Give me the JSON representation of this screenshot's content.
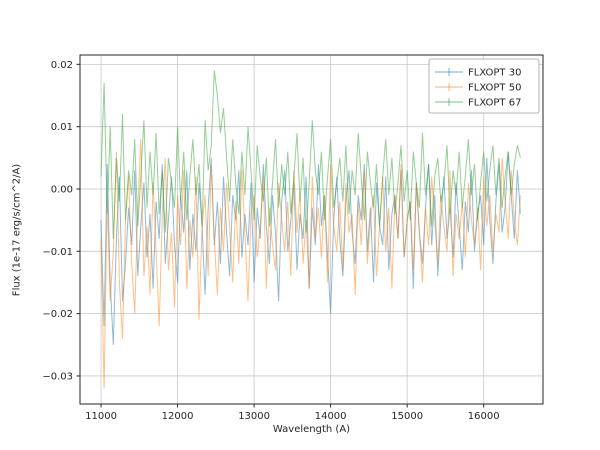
{
  "figure": {
    "background": "#ffffff"
  },
  "chart_data": {
    "type": "line",
    "title": "",
    "xlabel": "Wavelength (A)",
    "ylabel": "Flux (1e-17 erg/s/cm^2/A)",
    "xlim": [
      10725,
      16775
    ],
    "ylim": [
      -0.0345,
      0.0215
    ],
    "x_ticks": [
      11000,
      12000,
      13000,
      14000,
      15000,
      16000
    ],
    "y_ticks": [
      -0.03,
      -0.02,
      -0.01,
      0.0,
      0.01,
      0.02
    ],
    "grid": true,
    "legend_position": "upper right",
    "grid_color": "#c8c8c8",
    "spine_color": "#262626",
    "x_start": 11000,
    "x_step": 40,
    "series": [
      {
        "name": "FLXOPT 30",
        "color": "#1f77b4",
        "opacity": 0.5,
        "values": [
          -0.005,
          -0.022,
          0.004,
          -0.015,
          -0.025,
          -0.008,
          0.002,
          -0.018,
          -0.012,
          -0.003,
          -0.009,
          0.003,
          -0.014,
          -0.006,
          0.001,
          -0.011,
          -0.004,
          -0.016,
          -0.002,
          -0.008,
          0.004,
          -0.012,
          -0.005,
          0.002,
          -0.009,
          -0.015,
          -0.001,
          -0.007,
          0.003,
          -0.013,
          -0.004,
          -0.01,
          0.001,
          -0.006,
          -0.017,
          -0.003,
          0.005,
          -0.009,
          -0.002,
          -0.012,
          0.002,
          -0.007,
          -0.014,
          -0.001,
          -0.005,
          0.003,
          -0.011,
          -0.004,
          -0.009,
          0.001,
          -0.015,
          -0.003,
          -0.008,
          0.004,
          -0.006,
          -0.012,
          -0.001,
          -0.007,
          -0.018,
          -0.002,
          0.003,
          -0.01,
          -0.005,
          0.001,
          -0.013,
          -0.004,
          -0.008,
          0.002,
          -0.016,
          -0.003,
          -0.009,
          0.004,
          -0.006,
          -0.001,
          -0.011,
          -0.02,
          -0.005,
          0.002,
          -0.008,
          -0.014,
          -0.002,
          0.003,
          -0.007,
          -0.012,
          -0.001,
          -0.005,
          0.004,
          -0.01,
          -0.003,
          -0.015,
          0.001,
          -0.006,
          -0.009,
          0.002,
          -0.013,
          -0.004,
          -0.001,
          -0.008,
          0.003,
          -0.011,
          -0.005,
          -0.002,
          -0.016,
          0.001,
          -0.007,
          -0.012,
          -0.003,
          0.004,
          -0.009,
          -0.001,
          -0.014,
          -0.005,
          0.002,
          -0.008,
          -0.003,
          -0.011,
          0.001,
          -0.006,
          -0.013,
          -0.002,
          -0.007,
          0.003,
          -0.01,
          -0.004,
          -0.001,
          -0.009,
          0.005,
          -0.005,
          -0.012,
          -0.002,
          0.004,
          -0.007,
          -0.003,
          0.006,
          -0.001,
          -0.008,
          0.003,
          -0.004
        ]
      },
      {
        "name": "FLXOPT 50",
        "color": "#ff7f0e",
        "opacity": 0.5,
        "values": [
          -0.008,
          -0.032,
          -0.002,
          -0.018,
          -0.01,
          0.006,
          -0.015,
          -0.024,
          -0.005,
          0.002,
          -0.012,
          -0.02,
          -0.003,
          0.008,
          -0.014,
          -0.006,
          -0.017,
          0.001,
          -0.01,
          -0.022,
          -0.004,
          0.005,
          -0.013,
          -0.007,
          -0.019,
          -0.001,
          -0.009,
          0.003,
          -0.016,
          -0.005,
          -0.011,
          0.002,
          -0.021,
          -0.006,
          -0.001,
          -0.014,
          0.004,
          -0.008,
          -0.017,
          -0.003,
          -0.01,
          0.001,
          -0.006,
          -0.015,
          -0.002,
          -0.012,
          0.003,
          -0.007,
          -0.018,
          -0.004,
          -0.001,
          -0.011,
          -0.006,
          0.002,
          -0.016,
          -0.003,
          -0.009,
          -0.013,
          0.001,
          -0.005,
          -0.01,
          -0.002,
          -0.014,
          0.003,
          -0.007,
          -0.001,
          -0.012,
          -0.005,
          -0.016,
          0.002,
          -0.008,
          -0.003,
          -0.011,
          -0.001,
          -0.015,
          0.004,
          -0.006,
          -0.01,
          -0.002,
          -0.013,
          0.001,
          -0.007,
          -0.004,
          -0.017,
          -0.002,
          -0.009,
          0.003,
          -0.012,
          -0.005,
          -0.001,
          -0.014,
          -0.006,
          0.002,
          -0.01,
          -0.003,
          -0.016,
          -0.001,
          -0.008,
          0.004,
          -0.011,
          -0.005,
          -0.002,
          -0.013,
          0.001,
          -0.007,
          -0.015,
          -0.003,
          -0.009,
          0.002,
          -0.005,
          -0.012,
          -0.001,
          -0.006,
          -0.01,
          0.003,
          -0.014,
          -0.004,
          -0.008,
          -0.002,
          -0.011,
          0.001,
          -0.005,
          -0.009,
          -0.003,
          -0.013,
          0.002,
          -0.006,
          -0.001,
          -0.01,
          -0.004,
          -0.007,
          0.005,
          -0.002,
          -0.008,
          0.003,
          -0.005,
          -0.009,
          -0.001
        ]
      },
      {
        "name": "FLXOPT 67",
        "color": "#2ca02c",
        "opacity": 0.5,
        "values": [
          0.002,
          0.017,
          -0.004,
          0.01,
          -0.008,
          0.005,
          -0.002,
          0.012,
          -0.005,
          0.003,
          -0.001,
          0.008,
          -0.006,
          0.002,
          0.011,
          -0.003,
          0.006,
          -0.001,
          0.009,
          -0.004,
          0.003,
          -0.007,
          0.005,
          0.001,
          -0.003,
          0.01,
          -0.002,
          0.006,
          -0.005,
          0.002,
          0.008,
          -0.001,
          0.004,
          -0.006,
          0.011,
          0.003,
          0.007,
          0.019,
          0.015,
          0.009,
          0.013,
          0.005,
          -0.002,
          0.008,
          0.001,
          -0.004,
          0.006,
          -0.001,
          0.01,
          0.003,
          -0.005,
          0.007,
          0.002,
          -0.002,
          0.005,
          -0.006,
          0.001,
          0.008,
          -0.003,
          0.004,
          -0.001,
          0.006,
          -0.004,
          0.002,
          0.009,
          -0.002,
          0.005,
          -0.007,
          0.001,
          0.011,
          0.003,
          -0.001,
          0.006,
          -0.005,
          0.002,
          0.008,
          -0.003,
          0.001,
          0.005,
          -0.002,
          0.007,
          -0.004,
          0.003,
          -0.001,
          0.009,
          0.002,
          -0.005,
          0.006,
          0.001,
          -0.003,
          0.004,
          -0.006,
          0.002,
          0.008,
          -0.001,
          0.005,
          -0.004,
          0.001,
          0.007,
          -0.002,
          0.003,
          -0.005,
          0.006,
          0.001,
          -0.003,
          0.009,
          -0.001,
          0.004,
          -0.006,
          0.002,
          0.005,
          -0.002,
          0.001,
          0.007,
          -0.004,
          0.003,
          -0.001,
          0.006,
          -0.003,
          0.002,
          0.008,
          -0.001,
          0.004,
          -0.005,
          0.001,
          0.006,
          -0.002,
          0.003,
          0.007,
          -0.001,
          0.005,
          -0.003,
          0.002,
          0.006,
          -0.001,
          0.004,
          0.007,
          0.005
        ]
      }
    ]
  }
}
